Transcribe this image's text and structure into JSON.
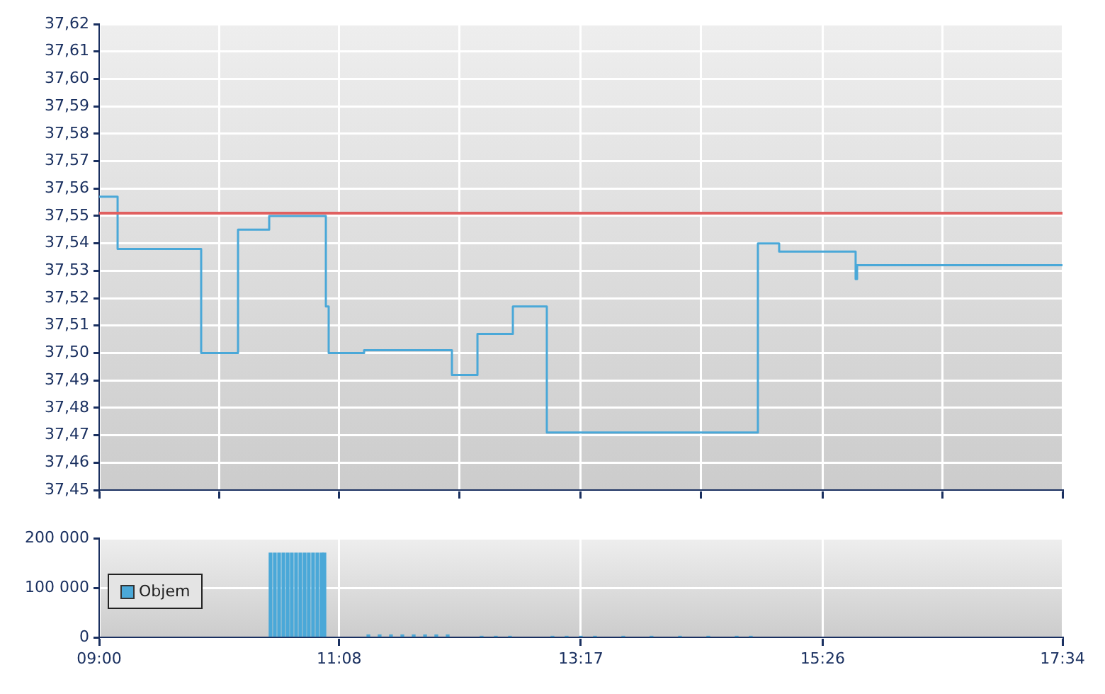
{
  "chart_data": [
    {
      "type": "step",
      "x": [
        9.0,
        9.164,
        9.907,
        10.235,
        10.512,
        11.016,
        11.041,
        11.356,
        12.137,
        12.364,
        12.679,
        12.981,
        14.858,
        15.047,
        15.727,
        15.74,
        17.5667
      ],
      "series": [
        {
          "color": "#4aa8d8",
          "values": [
            37.557,
            37.538,
            37.5,
            37.545,
            37.55,
            37.517,
            37.5,
            37.501,
            37.492,
            37.507,
            37.517,
            37.471,
            37.54,
            37.537,
            37.527,
            37.532,
            37.532
          ]
        }
      ],
      "xlim": [
        9.0,
        17.5667
      ],
      "xticks": [
        {
          "value": 9.0,
          "label": null
        },
        {
          "value": 10.0667,
          "label": null
        },
        {
          "value": 11.1333,
          "label": null
        },
        {
          "value": 12.2,
          "label": null
        },
        {
          "value": 13.2833,
          "label": null
        },
        {
          "value": 14.35,
          "label": null
        },
        {
          "value": 15.4333,
          "label": null
        },
        {
          "value": 16.5,
          "label": null
        },
        {
          "value": 17.5667,
          "label": null
        }
      ],
      "ylim": [
        37.45,
        37.62
      ],
      "yticks": [
        {
          "value": 37.45,
          "label": "37,45"
        },
        {
          "value": 37.46,
          "label": "37,46"
        },
        {
          "value": 37.47,
          "label": "37,47"
        },
        {
          "value": 37.48,
          "label": "37,48"
        },
        {
          "value": 37.49,
          "label": "37,49"
        },
        {
          "value": 37.5,
          "label": "37,50"
        },
        {
          "value": 37.51,
          "label": "37,51"
        },
        {
          "value": 37.52,
          "label": "37,52"
        },
        {
          "value": 37.53,
          "label": "37,53"
        },
        {
          "value": 37.54,
          "label": "37,54"
        },
        {
          "value": 37.55,
          "label": "37,55"
        },
        {
          "value": 37.56,
          "label": "37,56"
        },
        {
          "value": 37.57,
          "label": "37,57"
        },
        {
          "value": 37.58,
          "label": "37,58"
        },
        {
          "value": 37.59,
          "label": "37,59"
        },
        {
          "value": 37.6,
          "label": "37,60"
        },
        {
          "value": 37.61,
          "label": "37,61"
        },
        {
          "value": 37.62,
          "label": "37,62"
        }
      ],
      "ref_lines": [
        {
          "axis": "y",
          "value": 37.551,
          "color": "#e06060"
        }
      ],
      "grid": true,
      "tick_labels": "y",
      "legend": false
    },
    {
      "type": "bar",
      "x": [
        10.524,
        10.562,
        10.6,
        10.638,
        10.676,
        10.713,
        10.751,
        10.789,
        10.827,
        10.864,
        10.902,
        10.94,
        10.978,
        11.003,
        11.394,
        11.494,
        11.595,
        11.696,
        11.797,
        11.898,
        11.998,
        12.099,
        12.401,
        12.527,
        12.653,
        13.031,
        13.157,
        13.283,
        13.409,
        13.661,
        13.912,
        14.165,
        14.417,
        14.669,
        14.795
      ],
      "series": [
        {
          "name": "Objem",
          "color": "#4aa8d8",
          "values": [
            170000,
            170000,
            170000,
            170000,
            170000,
            170000,
            170000,
            170000,
            170000,
            170000,
            170000,
            170000,
            170000,
            170000,
            5000,
            5000,
            5000,
            5000,
            5000,
            5000,
            5000,
            5000,
            2000,
            2000,
            2000,
            2000,
            2000,
            2000,
            2000,
            2000,
            2000,
            2000,
            2000,
            2000,
            2000
          ]
        }
      ],
      "xlim": [
        9.0,
        17.5667
      ],
      "xticks": [
        {
          "value": 9.0,
          "label": "09:00"
        },
        {
          "value": 11.1333,
          "label": "11:08"
        },
        {
          "value": 13.2833,
          "label": "13:17"
        },
        {
          "value": 15.4333,
          "label": "15:26"
        },
        {
          "value": 17.5667,
          "label": "17:34"
        }
      ],
      "ylim": [
        0,
        200000
      ],
      "yticks": [
        0,
        {
          "value": 100000,
          "label": "100 000"
        },
        {
          "value": 200000,
          "label": "200 000"
        }
      ],
      "grid": true,
      "legend": "left"
    }
  ]
}
